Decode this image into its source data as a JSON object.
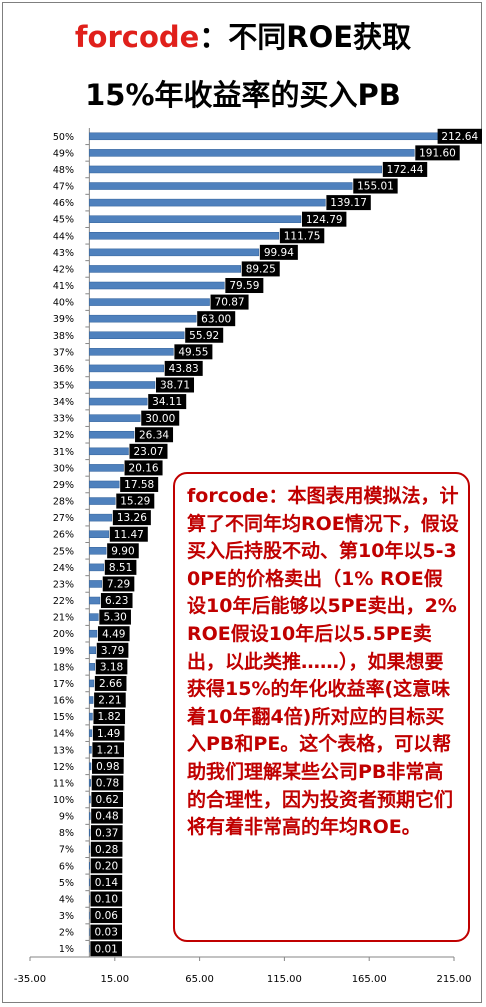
{
  "title": {
    "brand": "forcode",
    "line1_rest": "：不同ROE获取",
    "line2": "15%年收益率的买入PB"
  },
  "note": "forcode：本图表用模拟法，计算了不同年均ROE情况下，假设买入后持股不动、第10年以5-30PE的价格卖出（1% ROE假设10年后能够以5PE卖出，2% ROE假设10年后以5.5PE卖出，以此类推……），如果想要获得15%的年化收益率(这意味着10年翻4倍)所对应的目标买入PB和PE。这个表格，可以帮助我们理解某些公司PB非常高的合理性，因为投资者预期它们将有着非常高的年均ROE。",
  "colors": {
    "bar": "#4f81bd",
    "label_bg": "#000000",
    "label_text": "#ffffff",
    "accent": "#e0201b"
  },
  "chart_data": {
    "type": "bar",
    "orientation": "horizontal",
    "categories": [
      "1%",
      "2%",
      "3%",
      "4%",
      "5%",
      "6%",
      "7%",
      "8%",
      "9%",
      "10%",
      "11%",
      "12%",
      "13%",
      "14%",
      "15%",
      "16%",
      "17%",
      "18%",
      "19%",
      "20%",
      "21%",
      "22%",
      "23%",
      "24%",
      "25%",
      "26%",
      "27%",
      "28%",
      "29%",
      "30%",
      "31%",
      "32%",
      "33%",
      "34%",
      "35%",
      "36%",
      "37%",
      "38%",
      "39%",
      "40%",
      "41%",
      "42%",
      "43%",
      "44%",
      "45%",
      "46%",
      "47%",
      "48%",
      "49%",
      "50%"
    ],
    "values": [
      0.01,
      0.03,
      0.06,
      0.1,
      0.14,
      0.2,
      0.28,
      0.37,
      0.48,
      0.62,
      0.78,
      0.98,
      1.21,
      1.49,
      1.82,
      2.21,
      2.66,
      3.18,
      3.79,
      4.49,
      5.3,
      6.23,
      7.29,
      8.51,
      9.9,
      11.47,
      13.26,
      15.29,
      17.58,
      20.16,
      23.07,
      26.34,
      30.0,
      34.11,
      38.71,
      43.83,
      49.55,
      55.92,
      63.0,
      70.87,
      79.59,
      89.25,
      99.94,
      111.75,
      124.79,
      139.17,
      155.01,
      172.44,
      191.6,
      212.64
    ],
    "data_labels": [
      "0.01",
      "0.03",
      "0.06",
      "0.10",
      "0.14",
      "0.20",
      "0.28",
      "0.37",
      "0.48",
      "0.62",
      "0.78",
      "0.98",
      "1.21",
      "1.49",
      "1.82",
      "2.21",
      "2.66",
      "3.18",
      "3.79",
      "4.49",
      "5.30",
      "6.23",
      "7.29",
      "8.51",
      "9.90",
      "11.47",
      "13.26",
      "15.29",
      "17.58",
      "20.16",
      "23.07",
      "26.34",
      "30.00",
      "34.11",
      "38.71",
      "43.83",
      "49.55",
      "55.92",
      "63.00",
      "70.87",
      "79.59",
      "89.25",
      "99.94",
      "111.75",
      "124.79",
      "139.17",
      "155.01",
      "172.44",
      "191.60",
      "212.64"
    ],
    "xlim": [
      -35,
      215
    ],
    "x_ticks": [
      "-35.00",
      "15.00",
      "65.00",
      "115.00",
      "165.00",
      "215.00"
    ],
    "x_tick_values": [
      -35,
      15,
      65,
      115,
      165,
      215
    ],
    "category_order": "bottom-to-top",
    "grid": false,
    "legend": "none"
  }
}
